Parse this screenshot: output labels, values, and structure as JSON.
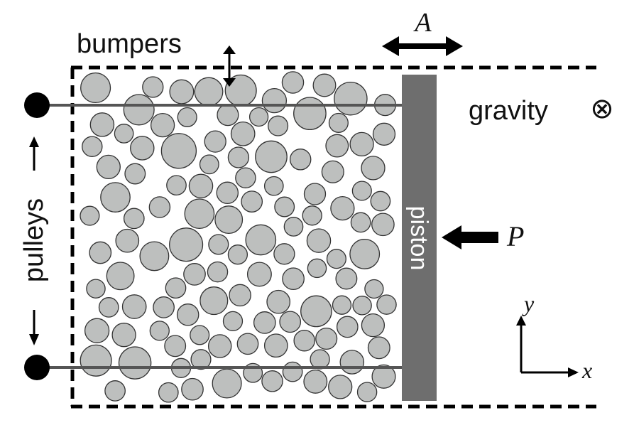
{
  "labels": {
    "bumpers": "bumpers",
    "gravity": "gravity",
    "gravity_symbol": "⊗",
    "pulleys": "pulleys",
    "piston": "piston",
    "amplitude": "A",
    "pressure": "P",
    "axis_x": "x",
    "axis_y": "y"
  },
  "colors": {
    "grain_fill": "#bdbfbe",
    "grain_stroke": "#333333",
    "piston": "#6e6e6e",
    "line": "#000000",
    "pulley_line": "#555555"
  }
}
